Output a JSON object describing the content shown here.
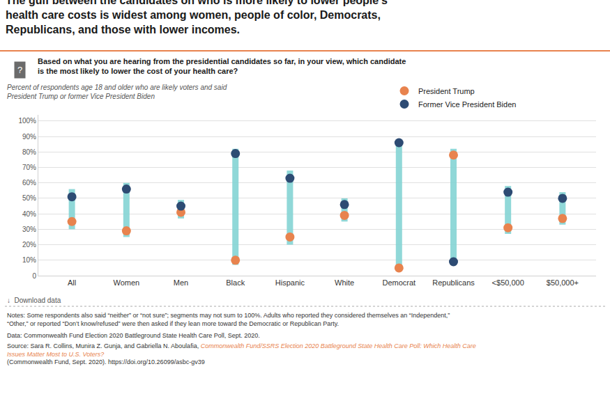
{
  "chart_data": {
    "type": "dumbbell",
    "title": "The gulf between the candidates on who is more likely to lower people’s\nhealth care costs is widest among women, people of color, Democrats,\nRepublicans, and those with lower incomes.",
    "subtitle": "Percent of respondents age 18 and older who are likely voters and said\nPresident Trump or former Vice President Biden",
    "annotations": [
      "?",
      "Based on what you are hearing from the presidential candidates so far, in your view, which candidate\nis the most likely to lower the cost of your health care?",
      "↓  Download data",
      "Notes: Some respondents also said “neither” or “not sure”; segments may not sum to 100%. Adults who reported they considered themselves an “Independent,”\n“Other,” or reported “Don’t know/refused” were then asked if they lean more toward the Democratic or Republican Party.",
      "Data: Commonwealth Fund Election 2020 Battleground State Health Care Poll, Sept. 2020.",
      "Source: Sara R. Collins, Munira Z. Gunja, and Gabriella N. Aboulafia, ",
      "Commonwealth Fund/SSRS Election 2020 Battleground State Health Care Poll: Which Health Care\nIssues Matter Most to U.S. Voters?",
      "(Commonwealth Fund, Sept. 2020). https://doi.org/10.26099/asbc-gv39"
    ],
    "categories": [
      "All",
      "Women",
      "Men",
      "Black",
      "Hispanic",
      "White",
      "Democrat",
      "Republicans",
      "<$50,000",
      "$50,000+"
    ],
    "series": [
      {
        "type": "range",
        "color": "#85D4D4",
        "low": [
          30,
          25,
          37,
          7,
          20,
          35,
          3,
          7,
          27,
          33
        ],
        "high": [
          56,
          60,
          49,
          82,
          68,
          50,
          88,
          82,
          58,
          54
        ]
      },
      {
        "name": "President Trump",
        "type": "scatter",
        "color": "#E8834E",
        "values": [
          35,
          29,
          41,
          10,
          25,
          39,
          5,
          78,
          31,
          37
        ]
      },
      {
        "name": "Former Vice President Biden",
        "type": "scatter",
        "color": "#2D4B73",
        "values": [
          51,
          56,
          45,
          79,
          63,
          46,
          86,
          9,
          54,
          50
        ]
      }
    ],
    "ylim": [
      0,
      104
    ],
    "yticks": [
      0,
      {
        "value": 10,
        "label": "10%"
      },
      {
        "value": 20,
        "label": "20%"
      },
      {
        "value": 30,
        "label": "30%"
      },
      {
        "value": 40,
        "label": "40%"
      },
      {
        "value": 50,
        "label": "50%"
      },
      {
        "value": 60,
        "label": "60%"
      },
      {
        "value": 70,
        "label": "70%"
      },
      {
        "value": 80,
        "label": "80%"
      },
      {
        "value": 90,
        "label": "90%"
      },
      {
        "value": 100,
        "label": "100%"
      }
    ],
    "grid": true,
    "legend": "upper right"
  }
}
